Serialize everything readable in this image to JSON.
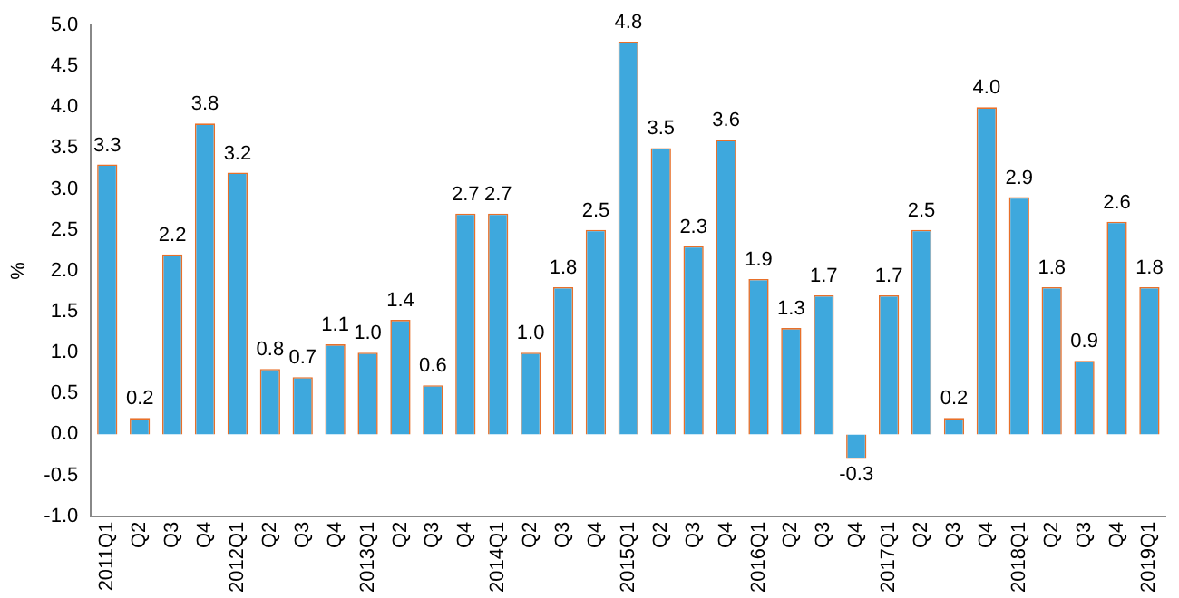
{
  "chart_data": {
    "type": "bar",
    "ylabel": "%",
    "categories": [
      "2011Q1",
      "Q2",
      "Q3",
      "Q4",
      "2012Q1",
      "Q2",
      "Q3",
      "Q4",
      "2013Q1",
      "Q2",
      "Q3",
      "Q4",
      "2014Q1",
      "Q2",
      "Q3",
      "Q4",
      "2015Q1",
      "Q2",
      "Q3",
      "Q4",
      "2016Q1",
      "Q2",
      "Q3",
      "Q4",
      "2017Q1",
      "Q2",
      "Q3",
      "Q4",
      "2018Q1",
      "Q2",
      "Q3",
      "Q4",
      "2019Q1"
    ],
    "series": [
      {
        "color": "#3ea8dd",
        "values": [
          3.3,
          0.2,
          2.2,
          3.8,
          3.2,
          0.8,
          0.7,
          1.1,
          1.0,
          1.4,
          0.6,
          2.7,
          2.7,
          1.0,
          1.8,
          2.5,
          4.8,
          3.5,
          2.3,
          3.6,
          1.9,
          1.3,
          1.7,
          -0.3,
          1.7,
          2.5,
          0.2,
          4.0,
          2.9,
          1.8,
          0.9,
          2.6,
          1.8
        ],
        "value_labels": [
          "3.3",
          "0.2",
          "2.2",
          "3.8",
          "3.2",
          "0.8",
          "0.7",
          "1.1",
          "1.0",
          "1.4",
          "0.6",
          "2.7",
          "2.7",
          "1.0",
          "1.8",
          "2.5",
          "4.8",
          "3.5",
          "2.3",
          "3.6",
          "1.9",
          "1.3",
          "1.7",
          "-0.3",
          "1.7",
          "2.5",
          "0.2",
          "4.0",
          "2.9",
          "1.8",
          "0.9",
          "2.6",
          "1.8"
        ]
      }
    ],
    "ylim": [
      -1,
      5
    ],
    "yticks": [
      {
        "value": -1,
        "label": "-1.0"
      },
      {
        "value": -0.5,
        "label": "-0.5"
      },
      {
        "value": 0,
        "label": "0.0"
      },
      {
        "value": 0.5,
        "label": "0.5"
      },
      {
        "value": 1,
        "label": "1.0"
      },
      {
        "value": 1.5,
        "label": "1.5"
      },
      {
        "value": 2,
        "label": "2.0"
      },
      {
        "value": 2.5,
        "label": "2.5"
      },
      {
        "value": 3,
        "label": "3.0"
      },
      {
        "value": 3.5,
        "label": "3.5"
      },
      {
        "value": 4,
        "label": "4.0"
      },
      {
        "value": 4.5,
        "label": "4.5"
      },
      {
        "value": 5,
        "label": "5.0"
      }
    ],
    "grid": false,
    "legend": false
  }
}
